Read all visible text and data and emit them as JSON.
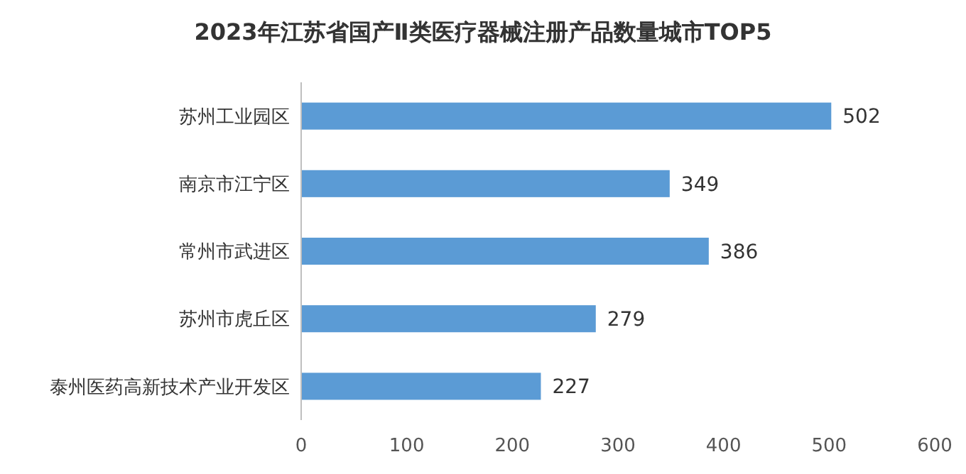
{
  "chart_data": {
    "type": "bar",
    "orientation": "horizontal",
    "title": "2023年江苏省国产Ⅱ类医疗器械注册产品数量城市TOP5",
    "categories": [
      "苏州工业园区",
      "南京市江宁区",
      "常州市武进区",
      "苏州市虎丘区",
      "泰州医药高新技术产业开发区"
    ],
    "values": [
      502,
      349,
      386,
      279,
      227
    ],
    "color": "#5b9bd5",
    "data_labels": true,
    "xlim": [
      0,
      600
    ],
    "xticks": [
      0,
      100,
      200,
      300,
      400,
      500,
      600
    ],
    "grid": false
  }
}
